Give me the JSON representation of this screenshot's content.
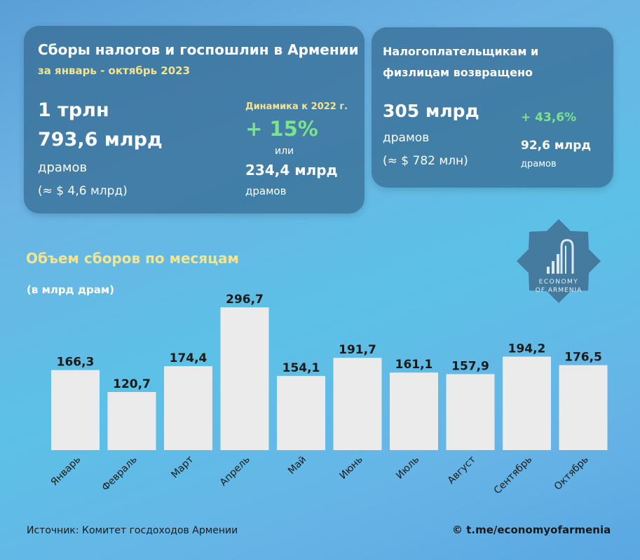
{
  "card_left": {
    "title": "Сборы налогов и госпошлин в Армении",
    "subtitle": "за январь - октябрь 2023",
    "total_line1": "1 трлн",
    "total_line2": "793,6 млрд",
    "total_unit": "драмов",
    "total_usd": "(≈ $ 4,6 млрд)",
    "dynamics_label": "Динамика к 2022 г.",
    "dynamics_pct": "+ 15%",
    "dynamics_or": "или",
    "dynamics_abs": "234,4 млрд",
    "dynamics_unit": "драмов"
  },
  "card_right": {
    "title_line1": "Налогоплательщикам и",
    "title_line2": "физлицам возвращено",
    "amount": "305 млрд",
    "amount_unit": "драмов",
    "amount_usd": "(≈ $ 782 млн)",
    "growth_pct": "+ 43,6%",
    "growth_abs": "92,6 млрд",
    "growth_unit": "драмов"
  },
  "logo": {
    "line1": "ECONOMY",
    "line2": "OF ARMENIA"
  },
  "chart_data": {
    "type": "bar",
    "title": "Объем сборов по месяцам",
    "unit_label": "(в млрд драм)",
    "categories": [
      "Январь",
      "Февраль",
      "Март",
      "Апрель",
      "Май",
      "Июнь",
      "Июль",
      "Август",
      "Сентябрь",
      "Октябрь"
    ],
    "values": [
      166.3,
      120.7,
      174.4,
      296.7,
      154.1,
      191.7,
      161.1,
      157.9,
      194.2,
      176.5
    ],
    "value_labels": [
      "166,3",
      "120,7",
      "174,4",
      "296,7",
      "154,1",
      "191,7",
      "161,1",
      "157,9",
      "194,2",
      "176,5"
    ],
    "ylim": [
      0,
      296.7
    ],
    "grid": false,
    "bar_color": "#ebebeb"
  },
  "footer": {
    "source": "Источник: Комитет госдоходов Армении",
    "channel": "© t.me/economyofarmenia"
  }
}
